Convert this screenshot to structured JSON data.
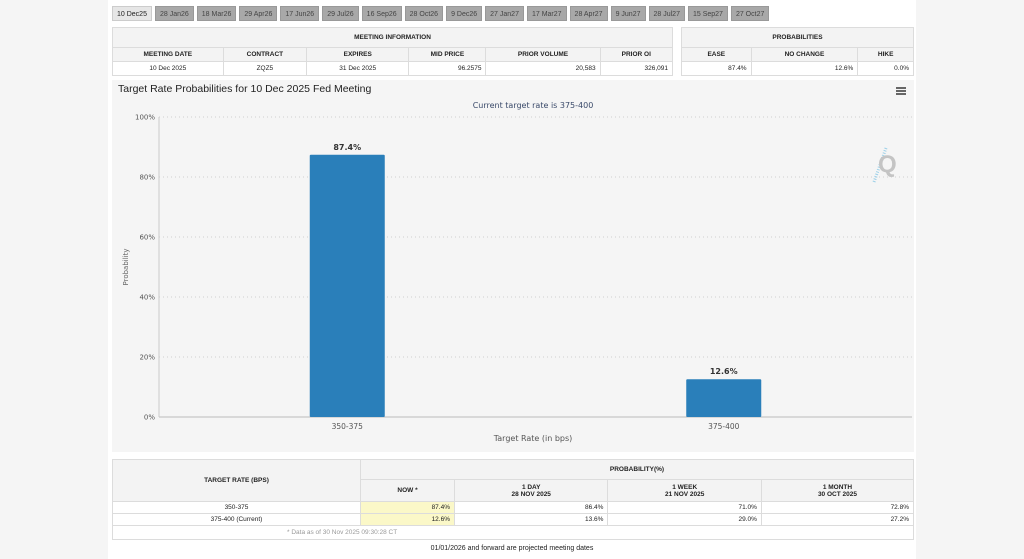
{
  "tabs": [
    "10 Dec25",
    "28 Jan26",
    "18 Mar26",
    "29 Apr26",
    "17 Jun26",
    "29 Jul26",
    "16 Sep26",
    "28 Oct26",
    "9 Dec26",
    "27 Jan27",
    "17 Mar27",
    "28 Apr27",
    "9 Jun27",
    "28 Jul27",
    "15 Sep27",
    "27 Oct27"
  ],
  "active_tab": "10 Dec25",
  "meeting_info": {
    "group_header": "MEETING INFORMATION",
    "headers": [
      "MEETING DATE",
      "CONTRACT",
      "EXPIRES",
      "MID PRICE",
      "PRIOR VOLUME",
      "PRIOR OI"
    ],
    "values": [
      "10 Dec 2025",
      "ZQZ5",
      "31 Dec 2025",
      "96.2575",
      "20,583",
      "326,091"
    ]
  },
  "probabilities": {
    "group_header": "PROBABILITIES",
    "headers": [
      "EASE",
      "NO CHANGE",
      "HIKE"
    ],
    "values": [
      "87.4%",
      "12.6%",
      "0.0%"
    ]
  },
  "chart_data": {
    "type": "bar",
    "title": "Target Rate Probabilities for 10 Dec 2025 Fed Meeting",
    "subtitle": "Current target rate is 375-400",
    "categories": [
      "350-375",
      "375-400"
    ],
    "values": [
      87.4,
      12.6
    ],
    "data_labels": [
      "87.4%",
      "12.6%"
    ],
    "xlabel": "Target Rate (in bps)",
    "ylabel": "Probability",
    "ylim": [
      0,
      100
    ],
    "yticks": [
      "0%",
      "20%",
      "40%",
      "60%",
      "80%",
      "100%"
    ],
    "grid": true,
    "bar_color": "#2a7fba"
  },
  "bottom_table": {
    "col_header_left": "TARGET RATE (BPS)",
    "group_header": "PROBABILITY(%)",
    "sub_headers": [
      {
        "line1": "NOW *",
        "line2": ""
      },
      {
        "line1": "1 DAY",
        "line2": "28 NOV 2025"
      },
      {
        "line1": "1 WEEK",
        "line2": "21 NOV 2025"
      },
      {
        "line1": "1 MONTH",
        "line2": "30 OCT 2025"
      }
    ],
    "rows": [
      {
        "rate": "350-375",
        "values": [
          "87.4%",
          "86.4%",
          "71.0%",
          "72.8%"
        ]
      },
      {
        "rate": "375-400 (Current)",
        "values": [
          "12.6%",
          "13.6%",
          "29.0%",
          "27.2%"
        ]
      }
    ],
    "footnote": "* Data as of 30 Nov 2025 09:30:28 CT"
  },
  "projected_note": "01/01/2026 and forward are projected meeting dates"
}
